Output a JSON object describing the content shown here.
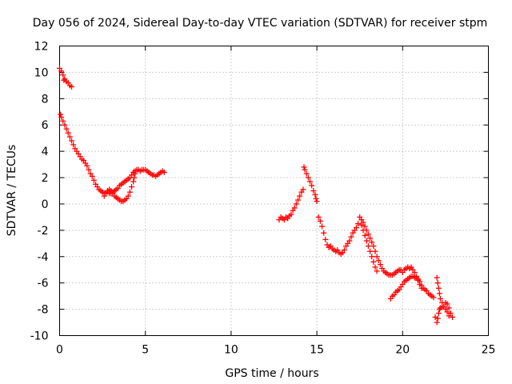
{
  "chart_data": {
    "type": "scatter",
    "title": "Day 056 of 2024, Sidereal Day-to-day VTEC variation (SDTVAR) for receiver stpm",
    "xlabel": "GPS time / hours",
    "ylabel": "SDTVAR / TECUs",
    "xlim": [
      0,
      25
    ],
    "ylim": [
      -10,
      12
    ],
    "xticks": [
      0,
      5,
      10,
      15,
      20,
      25
    ],
    "yticks": [
      -10,
      -8,
      -6,
      -4,
      -2,
      0,
      2,
      4,
      6,
      8,
      10,
      12
    ],
    "grid": true,
    "marker": "+",
    "color": "#ff0000",
    "series": [
      {
        "name": "SDTVAR",
        "points": [
          [
            0.0,
            10.3
          ],
          [
            0.1,
            10.1
          ],
          [
            0.2,
            9.8
          ],
          [
            0.25,
            9.4
          ],
          [
            0.3,
            9.5
          ],
          [
            0.4,
            9.3
          ],
          [
            0.5,
            9.2
          ],
          [
            0.6,
            9.0
          ],
          [
            0.7,
            8.9
          ],
          [
            0.05,
            6.8
          ],
          [
            0.1,
            6.6
          ],
          [
            0.2,
            6.3
          ],
          [
            0.3,
            6.0
          ],
          [
            0.4,
            5.7
          ],
          [
            0.5,
            5.4
          ],
          [
            0.6,
            5.1
          ],
          [
            0.7,
            4.8
          ],
          [
            0.8,
            4.5
          ],
          [
            0.9,
            4.2
          ],
          [
            1.0,
            4.0
          ],
          [
            1.1,
            3.8
          ],
          [
            1.2,
            3.6
          ],
          [
            1.3,
            3.4
          ],
          [
            1.4,
            3.3
          ],
          [
            1.5,
            3.1
          ],
          [
            1.6,
            2.9
          ],
          [
            1.7,
            2.6
          ],
          [
            1.8,
            2.3
          ],
          [
            1.9,
            2.1
          ],
          [
            2.0,
            1.8
          ],
          [
            2.1,
            1.5
          ],
          [
            2.2,
            1.3
          ],
          [
            2.3,
            1.1
          ],
          [
            2.4,
            1.0
          ],
          [
            2.5,
            0.9
          ],
          [
            2.6,
            0.8
          ],
          [
            2.7,
            0.8
          ],
          [
            2.8,
            0.9
          ],
          [
            2.9,
            0.8
          ],
          [
            3.0,
            0.8
          ],
          [
            3.1,
            0.9
          ],
          [
            3.2,
            1.0
          ],
          [
            3.3,
            1.1
          ],
          [
            3.4,
            1.2
          ],
          [
            3.5,
            1.4
          ],
          [
            3.6,
            1.5
          ],
          [
            3.7,
            1.6
          ],
          [
            3.8,
            1.7
          ],
          [
            3.9,
            1.8
          ],
          [
            4.0,
            1.9
          ],
          [
            4.1,
            2.0
          ],
          [
            4.2,
            2.2
          ],
          [
            4.3,
            2.4
          ],
          [
            4.4,
            2.5
          ],
          [
            4.5,
            2.6
          ],
          [
            4.6,
            2.6
          ],
          [
            4.7,
            2.5
          ],
          [
            4.8,
            2.6
          ],
          [
            4.9,
            2.6
          ],
          [
            5.0,
            2.6
          ],
          [
            5.1,
            2.5
          ],
          [
            5.2,
            2.4
          ],
          [
            5.3,
            2.3
          ],
          [
            5.4,
            2.2
          ],
          [
            5.5,
            2.2
          ],
          [
            5.6,
            2.1
          ],
          [
            5.7,
            2.2
          ],
          [
            5.8,
            2.3
          ],
          [
            5.9,
            2.4
          ],
          [
            6.0,
            2.5
          ],
          [
            6.1,
            2.4
          ],
          [
            2.6,
            0.6
          ],
          [
            2.8,
            1.0
          ],
          [
            2.9,
            1.1
          ],
          [
            3.0,
            1.0
          ],
          [
            3.1,
            0.8
          ],
          [
            3.2,
            0.6
          ],
          [
            3.3,
            0.5
          ],
          [
            3.4,
            0.4
          ],
          [
            3.5,
            0.3
          ],
          [
            3.6,
            0.2
          ],
          [
            3.7,
            0.2
          ],
          [
            3.8,
            0.3
          ],
          [
            3.9,
            0.4
          ],
          [
            4.0,
            0.6
          ],
          [
            4.1,
            0.9
          ],
          [
            4.2,
            1.3
          ],
          [
            4.3,
            1.7
          ],
          [
            4.35,
            2.0
          ],
          [
            4.4,
            2.3
          ],
          [
            12.8,
            -1.2
          ],
          [
            12.9,
            -1.0
          ],
          [
            13.0,
            -1.1
          ],
          [
            13.1,
            -1.2
          ],
          [
            13.2,
            -1.0
          ],
          [
            13.3,
            -1.1
          ],
          [
            13.4,
            -0.9
          ],
          [
            13.5,
            -0.8
          ],
          [
            13.6,
            -0.5
          ],
          [
            13.7,
            -0.3
          ],
          [
            13.8,
            0.0
          ],
          [
            13.9,
            0.3
          ],
          [
            14.0,
            0.6
          ],
          [
            14.1,
            0.9
          ],
          [
            14.2,
            1.1
          ],
          [
            14.25,
            2.8
          ],
          [
            14.3,
            2.6
          ],
          [
            14.4,
            2.3
          ],
          [
            14.5,
            2.0
          ],
          [
            14.6,
            1.7
          ],
          [
            14.7,
            1.4
          ],
          [
            14.8,
            1.0
          ],
          [
            14.9,
            0.7
          ],
          [
            14.95,
            0.4
          ],
          [
            15.0,
            0.2
          ],
          [
            15.1,
            -1.0
          ],
          [
            15.2,
            -1.3
          ],
          [
            15.3,
            -1.7
          ],
          [
            15.4,
            -2.2
          ],
          [
            15.5,
            -2.7
          ],
          [
            15.6,
            -3.1
          ],
          [
            15.7,
            -3.3
          ],
          [
            15.8,
            -3.2
          ],
          [
            15.9,
            -3.4
          ],
          [
            16.0,
            -3.5
          ],
          [
            16.1,
            -3.6
          ],
          [
            16.2,
            -3.5
          ],
          [
            16.3,
            -3.7
          ],
          [
            16.4,
            -3.8
          ],
          [
            16.5,
            -3.7
          ],
          [
            16.6,
            -3.5
          ],
          [
            16.7,
            -3.2
          ],
          [
            16.8,
            -3.0
          ],
          [
            16.9,
            -2.8
          ],
          [
            17.0,
            -2.5
          ],
          [
            17.1,
            -2.2
          ],
          [
            17.2,
            -2.0
          ],
          [
            17.3,
            -1.8
          ],
          [
            17.4,
            -1.5
          ],
          [
            17.5,
            -1.0
          ],
          [
            17.6,
            -1.2
          ],
          [
            17.7,
            -1.4
          ],
          [
            17.8,
            -1.7
          ],
          [
            17.9,
            -2.0
          ],
          [
            18.0,
            -2.3
          ],
          [
            18.1,
            -2.6
          ],
          [
            18.2,
            -2.9
          ],
          [
            18.3,
            -3.2
          ],
          [
            18.4,
            -3.6
          ],
          [
            18.5,
            -4.0
          ],
          [
            18.6,
            -4.3
          ],
          [
            18.7,
            -4.6
          ],
          [
            18.8,
            -4.9
          ],
          [
            18.9,
            -5.1
          ],
          [
            19.0,
            -5.2
          ],
          [
            19.1,
            -5.3
          ],
          [
            19.2,
            -5.4
          ],
          [
            19.3,
            -5.4
          ],
          [
            19.4,
            -5.4
          ],
          [
            19.5,
            -5.3
          ],
          [
            19.6,
            -5.2
          ],
          [
            19.7,
            -5.1
          ],
          [
            19.8,
            -5.0
          ],
          [
            19.9,
            -5.0
          ],
          [
            20.0,
            -5.2
          ],
          [
            20.1,
            -5.0
          ],
          [
            20.2,
            -4.9
          ],
          [
            20.3,
            -4.8
          ],
          [
            20.4,
            -4.9
          ],
          [
            20.5,
            -4.8
          ],
          [
            17.6,
            -1.6
          ],
          [
            17.7,
            -2.0
          ],
          [
            17.8,
            -2.4
          ],
          [
            17.9,
            -2.8
          ],
          [
            18.0,
            -3.2
          ],
          [
            18.1,
            -3.6
          ],
          [
            18.2,
            -4.0
          ],
          [
            18.3,
            -4.4
          ],
          [
            18.4,
            -4.8
          ],
          [
            18.5,
            -5.1
          ],
          [
            19.3,
            -7.2
          ],
          [
            19.4,
            -7.0
          ],
          [
            19.5,
            -6.9
          ],
          [
            19.6,
            -6.7
          ],
          [
            19.7,
            -6.6
          ],
          [
            19.8,
            -6.5
          ],
          [
            19.9,
            -6.3
          ],
          [
            20.0,
            -6.1
          ],
          [
            20.1,
            -5.9
          ],
          [
            20.2,
            -5.8
          ],
          [
            20.3,
            -5.7
          ],
          [
            20.4,
            -5.6
          ],
          [
            20.5,
            -5.5
          ],
          [
            20.6,
            -5.5
          ],
          [
            20.7,
            -5.6
          ],
          [
            20.8,
            -5.6
          ],
          [
            20.9,
            -5.7
          ],
          [
            21.0,
            -5.9
          ],
          [
            21.1,
            -6.2
          ],
          [
            21.2,
            -6.4
          ],
          [
            21.3,
            -6.5
          ],
          [
            21.4,
            -6.6
          ],
          [
            21.5,
            -6.8
          ],
          [
            21.6,
            -6.9
          ],
          [
            21.7,
            -7.0
          ],
          [
            21.8,
            -7.1
          ],
          [
            20.6,
            -5.0
          ],
          [
            20.7,
            -5.2
          ],
          [
            20.8,
            -5.5
          ],
          [
            20.9,
            -5.8
          ],
          [
            21.0,
            -6.1
          ],
          [
            21.1,
            -6.4
          ],
          [
            21.9,
            -8.6
          ],
          [
            22.0,
            -9.0
          ],
          [
            22.05,
            -8.7
          ],
          [
            22.1,
            -8.3
          ],
          [
            22.15,
            -8.0
          ],
          [
            22.2,
            -7.9
          ],
          [
            22.3,
            -7.8
          ],
          [
            22.4,
            -7.8
          ],
          [
            22.5,
            -7.5
          ],
          [
            22.6,
            -7.6
          ],
          [
            22.7,
            -7.9
          ],
          [
            22.8,
            -8.3
          ],
          [
            22.9,
            -8.6
          ],
          [
            22.0,
            -5.6
          ],
          [
            22.05,
            -6.0
          ],
          [
            22.1,
            -6.4
          ],
          [
            22.15,
            -6.8
          ],
          [
            22.2,
            -7.2
          ],
          [
            22.3,
            -7.5
          ],
          [
            22.4,
            -7.8
          ],
          [
            22.5,
            -8.0
          ],
          [
            22.6,
            -8.2
          ],
          [
            22.7,
            -8.5
          ]
        ]
      }
    ]
  }
}
